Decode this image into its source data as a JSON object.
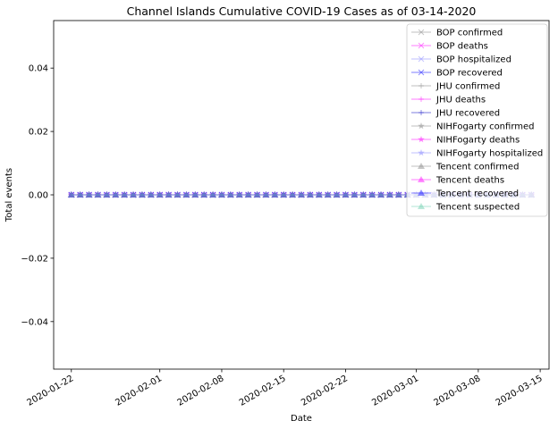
{
  "chart_data": {
    "type": "line",
    "title": "Channel Islands Cumulative COVID-19 Cases as of 03-14-2020",
    "xlabel": "Date",
    "ylabel": "Total events",
    "x_start": "2020-01-22",
    "x_end": "2020-03-14",
    "xlim": [
      "2020-01-20",
      "2020-03-16"
    ],
    "ylim": [
      -0.055,
      0.055
    ],
    "x_ticks": [
      "2020-01-22",
      "2020-02-01",
      "2020-02-08",
      "2020-02-15",
      "2020-02-22",
      "2020-03-01",
      "2020-03-08",
      "2020-03-15"
    ],
    "y_ticks": [
      0.04,
      0.02,
      0.0,
      -0.02,
      -0.04
    ],
    "y_tick_labels": [
      "0.04",
      "0.02",
      "0.00",
      "−0.02",
      "−0.04"
    ],
    "grid": false,
    "legend_position": "top-right",
    "series": [
      {
        "name": "BOP confirmed",
        "color": "#808080",
        "marker": "x",
        "values_all": 0
      },
      {
        "name": "BOP deaths",
        "color": "#ff00ff",
        "marker": "x",
        "values_all": 0
      },
      {
        "name": "BOP hospitalized",
        "color": "#8080ff",
        "marker": "x",
        "values_all": 0
      },
      {
        "name": "BOP recovered",
        "color": "#0000ff",
        "marker": "x",
        "values_all": 0
      },
      {
        "name": "JHU confirmed",
        "color": "#808080",
        "marker": "+",
        "values_all": 0
      },
      {
        "name": "JHU deaths",
        "color": "#ff00ff",
        "marker": "+",
        "values_all": 0
      },
      {
        "name": "JHU recovered",
        "color": "#0000c0",
        "marker": "+",
        "values_all": 0
      },
      {
        "name": "NIHFogarty confirmed",
        "color": "#808080",
        "marker": "star",
        "values_all": 0
      },
      {
        "name": "NIHFogarty deaths",
        "color": "#ff00ff",
        "marker": "star",
        "values_all": 0
      },
      {
        "name": "NIHFogarty hospitalized",
        "color": "#8080ff",
        "marker": "star",
        "values_all": 0
      },
      {
        "name": "Tencent confirmed",
        "color": "#808080",
        "marker": "triangle",
        "values_all": 0
      },
      {
        "name": "Tencent deaths",
        "color": "#ff00ff",
        "marker": "triangle",
        "values_all": 0
      },
      {
        "name": "Tencent recovered",
        "color": "#0000ff",
        "marker": "triangle",
        "values_all": 0
      },
      {
        "name": "Tencent suspected",
        "color": "#66cdaa",
        "marker": "triangle",
        "values_all": 0
      }
    ]
  }
}
